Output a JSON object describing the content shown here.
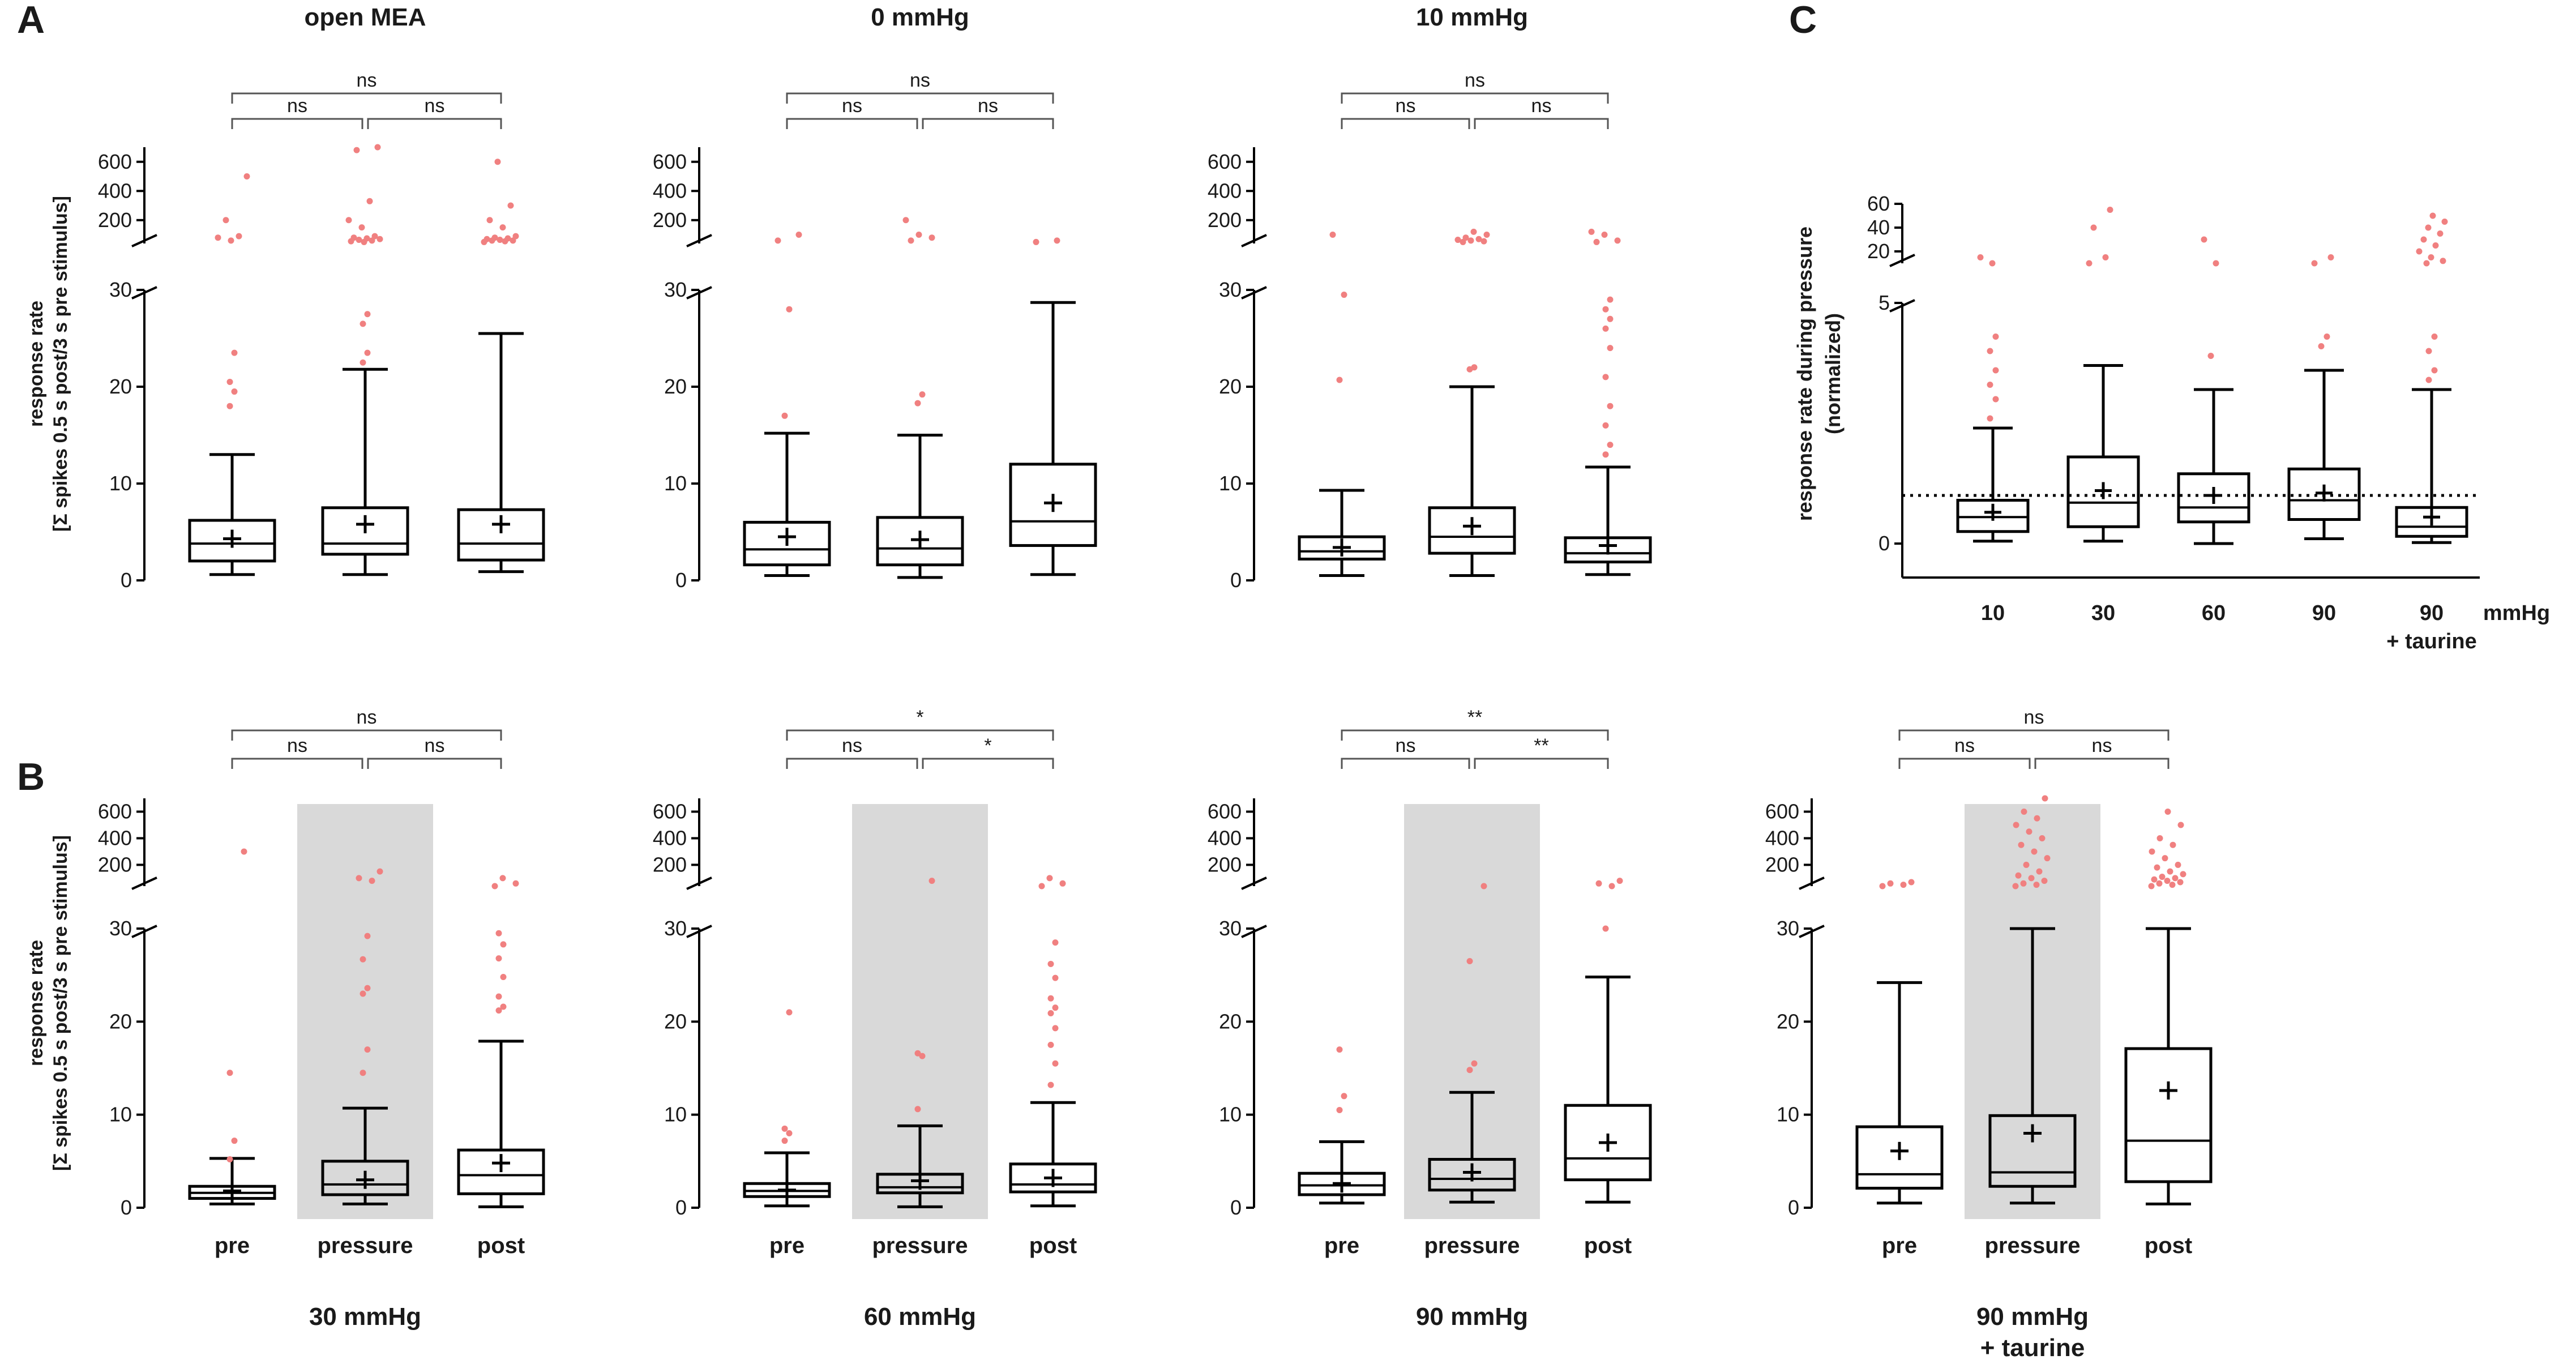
{
  "panel_labels": [
    "A",
    "B",
    "C"
  ],
  "y_axis_label": {
    "line1": "response rate",
    "line2": "[Σ spikes 0.5 s post/3 s pre stimulus]"
  },
  "c_y_axis_label": {
    "line1": "response rate during pressure",
    "line2": "(normalized)"
  },
  "x_categories": [
    "pre",
    "pressure",
    "post"
  ],
  "c_x_unit": "mmHg",
  "styles": {
    "box_color": "#000000",
    "outlier_color": "#f08080",
    "shade_color": "#d9d9d9",
    "bracket_color": "#555555"
  },
  "chart_data": [
    {
      "id": "open-mea",
      "type": "box",
      "title": "open MEA",
      "title_position": "top",
      "shade": false,
      "show_x_labels": false,
      "y_upper_ticks": [
        "200",
        "400",
        "600"
      ],
      "y_lower_ticks": [
        "0",
        "10",
        "20",
        "30"
      ],
      "sig": {
        "left": "ns",
        "right": "ns",
        "top": "ns"
      },
      "boxes": [
        {
          "min": 0.6,
          "q1": 2.0,
          "median": 3.8,
          "q3": 6.2,
          "max": 13.0,
          "mean": 4.3,
          "outliers": [
            18,
            19.5,
            20.5,
            23.5,
            60,
            80,
            90,
            200,
            500
          ]
        },
        {
          "min": 0.6,
          "q1": 2.7,
          "median": 3.8,
          "q3": 7.5,
          "max": 21.8,
          "mean": 5.8,
          "outliers": [
            22.5,
            23.5,
            26.5,
            27.5,
            50,
            55,
            60,
            65,
            70,
            75,
            80,
            90,
            150,
            200,
            330,
            680,
            700
          ]
        },
        {
          "min": 0.9,
          "q1": 2.1,
          "median": 3.8,
          "q3": 7.3,
          "max": 25.5,
          "mean": 5.8,
          "outliers": [
            50,
            55,
            60,
            60,
            65,
            70,
            75,
            80,
            90,
            150,
            200,
            300,
            600
          ]
        }
      ]
    },
    {
      "id": "0-mmhg",
      "type": "box",
      "title": "0 mmHg",
      "title_position": "top",
      "shade": false,
      "show_x_labels": false,
      "y_upper_ticks": [
        "200",
        "400",
        "600"
      ],
      "y_lower_ticks": [
        "0",
        "10",
        "20",
        "30"
      ],
      "sig": {
        "left": "ns",
        "right": "ns",
        "top": "ns"
      },
      "boxes": [
        {
          "min": 0.5,
          "q1": 1.6,
          "median": 3.2,
          "q3": 6.0,
          "max": 15.2,
          "mean": 4.5,
          "outliers": [
            17,
            28,
            60,
            100
          ]
        },
        {
          "min": 0.3,
          "q1": 1.6,
          "median": 3.3,
          "q3": 6.5,
          "max": 15.0,
          "mean": 4.2,
          "outliers": [
            18.3,
            19.2,
            60,
            80,
            100,
            200
          ]
        },
        {
          "min": 0.6,
          "q1": 3.6,
          "median": 6.1,
          "q3": 12.0,
          "max": 28.7,
          "mean": 8.0,
          "outliers": [
            50,
            60
          ]
        }
      ]
    },
    {
      "id": "10-mmhg",
      "type": "box",
      "title": "10 mmHg",
      "title_position": "top",
      "shade": false,
      "show_x_labels": false,
      "y_upper_ticks": [
        "200",
        "400",
        "600"
      ],
      "y_lower_ticks": [
        "0",
        "10",
        "20",
        "30"
      ],
      "sig": {
        "left": "ns",
        "right": "ns",
        "top": "ns"
      },
      "boxes": [
        {
          "min": 0.5,
          "q1": 2.2,
          "median": 3.0,
          "q3": 4.5,
          "max": 9.3,
          "mean": 3.4,
          "outliers": [
            20.7,
            29.5,
            100
          ]
        },
        {
          "min": 0.5,
          "q1": 2.8,
          "median": 4.5,
          "q3": 7.5,
          "max": 20.0,
          "mean": 5.6,
          "outliers": [
            21.8,
            22.0,
            50,
            55,
            60,
            65,
            70,
            80,
            100,
            120
          ]
        },
        {
          "min": 0.6,
          "q1": 1.9,
          "median": 2.8,
          "q3": 4.4,
          "max": 11.7,
          "mean": 3.6,
          "outliers": [
            13,
            14,
            16,
            18,
            21,
            24,
            26,
            27,
            28,
            29,
            50,
            60,
            100,
            120
          ]
        }
      ]
    },
    {
      "id": "30-mmhg",
      "type": "box",
      "title": "30 mmHg",
      "title_position": "bottom",
      "shade": true,
      "show_x_labels": true,
      "y_upper_ticks": [
        "200",
        "400",
        "600"
      ],
      "y_lower_ticks": [
        "0",
        "10",
        "20",
        "30"
      ],
      "sig": {
        "left": "ns",
        "right": "ns",
        "top": "ns"
      },
      "boxes": [
        {
          "min": 0.4,
          "q1": 1.0,
          "median": 1.6,
          "q3": 2.3,
          "max": 5.3,
          "mean": 1.8,
          "outliers": [
            5.2,
            7.2,
            14.5,
            300
          ]
        },
        {
          "min": 0.4,
          "q1": 1.4,
          "median": 2.5,
          "q3": 5.0,
          "max": 10.7,
          "mean": 3.0,
          "outliers": [
            14.5,
            17.0,
            23.0,
            23.6,
            26.7,
            29.2,
            80,
            100,
            150
          ]
        },
        {
          "min": 0.1,
          "q1": 1.5,
          "median": 3.5,
          "q3": 6.2,
          "max": 17.9,
          "mean": 4.8,
          "outliers": [
            21.2,
            21.6,
            22.7,
            24.8,
            26.8,
            28.3,
            29.5,
            40,
            60,
            100
          ]
        }
      ]
    },
    {
      "id": "60-mmhg",
      "type": "box",
      "title": "60 mmHg",
      "title_position": "bottom",
      "shade": true,
      "show_x_labels": true,
      "y_upper_ticks": [
        "200",
        "400",
        "600"
      ],
      "y_lower_ticks": [
        "0",
        "10",
        "20",
        "30"
      ],
      "sig": {
        "left": "ns",
        "right": "*",
        "top": "*"
      },
      "boxes": [
        {
          "min": 0.2,
          "q1": 1.2,
          "median": 1.8,
          "q3": 2.6,
          "max": 5.9,
          "mean": 1.9,
          "outliers": [
            7.2,
            8.0,
            8.5,
            21.0
          ]
        },
        {
          "min": 0.1,
          "q1": 1.6,
          "median": 2.2,
          "q3": 3.6,
          "max": 8.8,
          "mean": 2.9,
          "outliers": [
            10.6,
            16.3,
            16.6,
            80
          ]
        },
        {
          "min": 0.2,
          "q1": 1.7,
          "median": 2.5,
          "q3": 4.7,
          "max": 11.3,
          "mean": 3.2,
          "outliers": [
            13.2,
            15.5,
            17.5,
            19.3,
            20.9,
            21.5,
            22.5,
            24.7,
            26.2,
            28.5,
            40,
            60,
            100
          ]
        }
      ]
    },
    {
      "id": "90-mmhg",
      "type": "box",
      "title": "90 mmHg",
      "title_position": "bottom",
      "shade": true,
      "show_x_labels": true,
      "y_upper_ticks": [
        "200",
        "400",
        "600"
      ],
      "y_lower_ticks": [
        "0",
        "10",
        "20",
        "30"
      ],
      "sig": {
        "left": "ns",
        "right": "**",
        "top": "**"
      },
      "boxes": [
        {
          "min": 0.5,
          "q1": 1.4,
          "median": 2.4,
          "q3": 3.7,
          "max": 7.1,
          "mean": 2.6,
          "outliers": [
            10.5,
            12.0,
            17.0
          ]
        },
        {
          "min": 0.6,
          "q1": 1.9,
          "median": 3.1,
          "q3": 5.2,
          "max": 12.4,
          "mean": 3.8,
          "outliers": [
            14.8,
            15.5,
            26.5,
            40
          ]
        },
        {
          "min": 0.6,
          "q1": 3.0,
          "median": 5.3,
          "q3": 11.0,
          "max": 24.8,
          "mean": 7.0,
          "outliers": [
            30,
            40,
            60,
            80
          ]
        }
      ]
    },
    {
      "id": "90-mmhg-taurine",
      "type": "box",
      "title": "90 mmHg",
      "title_line2": "+ taurine",
      "title_position": "bottom",
      "shade": true,
      "show_x_labels": true,
      "y_upper_ticks": [
        "200",
        "400",
        "600"
      ],
      "y_lower_ticks": [
        "0",
        "10",
        "20",
        "30"
      ],
      "sig": {
        "left": "ns",
        "right": "ns",
        "top": "ns"
      },
      "boxes": [
        {
          "min": 0.5,
          "q1": 2.1,
          "median": 3.6,
          "q3": 8.7,
          "max": 24.2,
          "mean": 6.1,
          "outliers": [
            40,
            50,
            60,
            70
          ]
        },
        {
          "min": 0.5,
          "q1": 2.3,
          "median": 3.8,
          "q3": 9.9,
          "max": 30,
          "mean": 8.0,
          "outliers": [
            40,
            50,
            60,
            80,
            100,
            120,
            150,
            200,
            250,
            300,
            350,
            400,
            450,
            500,
            550,
            600,
            700
          ]
        },
        {
          "min": 0.4,
          "q1": 2.8,
          "median": 7.2,
          "q3": 17.1,
          "max": 30,
          "mean": 12.6,
          "outliers": [
            40,
            50,
            60,
            70,
            80,
            90,
            100,
            110,
            130,
            150,
            180,
            200,
            250,
            300,
            350,
            400,
            500,
            600
          ]
        }
      ]
    },
    {
      "id": "normalized",
      "type": "box",
      "title": "",
      "title_position": "none",
      "shade": false,
      "show_x_labels": true,
      "normalized": true,
      "reference_line": 1,
      "categories": [
        "10",
        "30",
        "60",
        "90",
        "90"
      ],
      "category_sub": [
        "",
        "",
        "",
        "",
        "+ taurine"
      ],
      "y_upper_ticks": [
        "20",
        "40",
        "60"
      ],
      "y_lower_ticks": [
        "0",
        "5"
      ],
      "boxes": [
        {
          "min": 0.05,
          "q1": 0.25,
          "median": 0.55,
          "q3": 0.9,
          "max": 2.4,
          "mean": 0.65,
          "outliers": [
            2.6,
            3.0,
            3.3,
            3.6,
            4.0,
            4.3,
            10,
            15
          ]
        },
        {
          "min": 0.05,
          "q1": 0.35,
          "median": 0.85,
          "q3": 1.8,
          "max": 3.7,
          "mean": 1.1,
          "outliers": [
            10,
            15,
            40,
            55
          ]
        },
        {
          "min": 0.0,
          "q1": 0.45,
          "median": 0.75,
          "q3": 1.45,
          "max": 3.2,
          "mean": 1.0,
          "outliers": [
            3.9,
            10,
            30
          ]
        },
        {
          "min": 0.1,
          "q1": 0.5,
          "median": 0.9,
          "q3": 1.55,
          "max": 3.6,
          "mean": 1.05,
          "outliers": [
            4.1,
            4.3,
            10,
            15
          ]
        },
        {
          "min": 0.02,
          "q1": 0.15,
          "median": 0.35,
          "q3": 0.75,
          "max": 3.2,
          "mean": 0.55,
          "outliers": [
            3.4,
            3.6,
            4.0,
            4.3,
            10,
            12,
            15,
            20,
            25,
            30,
            35,
            40,
            45,
            50
          ]
        }
      ]
    }
  ]
}
